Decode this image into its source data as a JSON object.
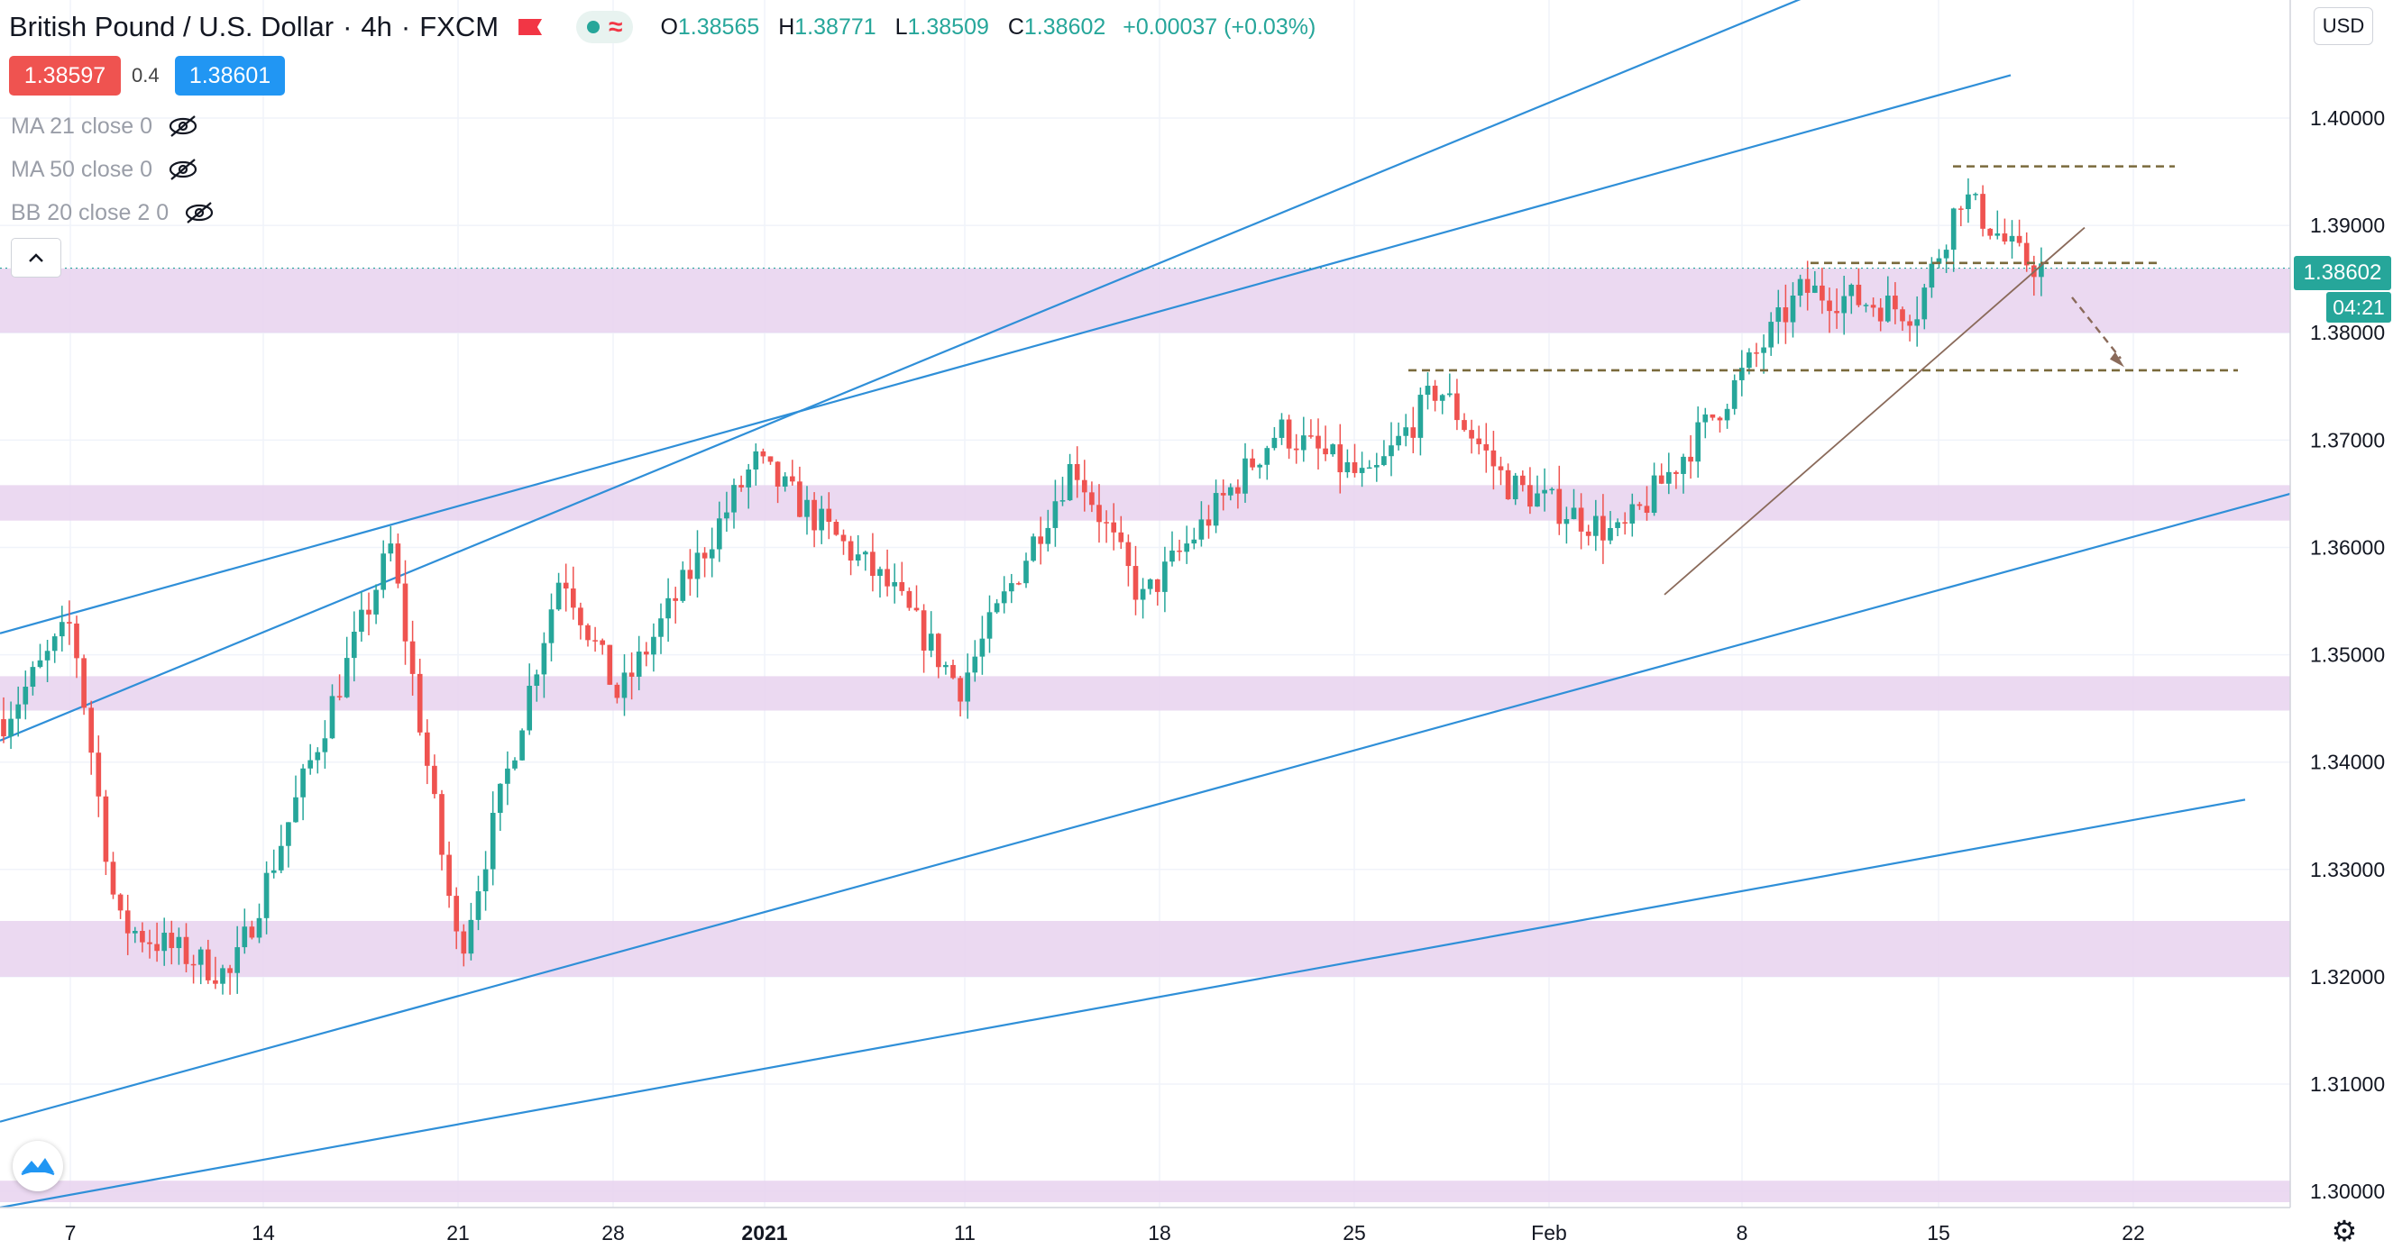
{
  "header": {
    "symbol": "British Pound / U.S. Dollar",
    "interval": "4h",
    "broker": "FXCM",
    "ohlc": {
      "o_label": "O",
      "o": "1.38565",
      "h_label": "H",
      "h": "1.38771",
      "l_label": "L",
      "l": "1.38509",
      "c_label": "C",
      "c": "1.38602",
      "change": "+0.00037 (+0.03%)"
    }
  },
  "trade": {
    "sell": "1.38597",
    "spread": "0.4",
    "buy": "1.38601"
  },
  "indicators": [
    {
      "label": "MA 21 close 0",
      "icon": "eye-off-icon"
    },
    {
      "label": "MA 50 close 0",
      "icon": "eye-off-icon"
    },
    {
      "label": "BB 20 close 2 0",
      "icon": "eye-off-icon"
    }
  ],
  "currency_button": "USD",
  "last_price_label": "1.38602",
  "countdown_label": "04:21",
  "colors": {
    "up": "#26a69a",
    "down": "#ef5350",
    "channel": "#2f8fd8",
    "zone": "#e7d2ee",
    "level": "#7a6a3c",
    "trend": "#8a6a5a",
    "sell": "#ef5350",
    "buy": "#2196f3"
  },
  "chart_data": {
    "type": "candlestick",
    "y_axis": {
      "ticks": [
        "1.40000",
        "1.39000",
        "1.38000",
        "1.37000",
        "1.36000",
        "1.35000",
        "1.34000",
        "1.33000",
        "1.32000",
        "1.31000",
        "1.30000"
      ],
      "ylim": [
        1.2985,
        1.411
      ]
    },
    "x_axis": {
      "ticks": [
        "7",
        "14",
        "21",
        "28",
        "2021",
        "11",
        "18",
        "25",
        "Feb",
        "8",
        "15",
        "22"
      ]
    },
    "series_summary": {
      "start": 1.348,
      "low": 1.314,
      "high": 1.395,
      "last": 1.38602
    },
    "anchors": [
      {
        "t": 0.0,
        "price": 1.344
      },
      {
        "t": 0.03,
        "price": 1.353
      },
      {
        "t": 0.05,
        "price": 1.325
      },
      {
        "t": 0.1,
        "price": 1.32
      },
      {
        "t": 0.14,
        "price": 1.343
      },
      {
        "t": 0.17,
        "price": 1.36
      },
      {
        "t": 0.2,
        "price": 1.322
      },
      {
        "t": 0.245,
        "price": 1.358
      },
      {
        "t": 0.27,
        "price": 1.346
      },
      {
        "t": 0.33,
        "price": 1.368
      },
      {
        "t": 0.39,
        "price": 1.356
      },
      {
        "t": 0.42,
        "price": 1.347
      },
      {
        "t": 0.47,
        "price": 1.368
      },
      {
        "t": 0.5,
        "price": 1.355
      },
      {
        "t": 0.56,
        "price": 1.371
      },
      {
        "t": 0.6,
        "price": 1.366
      },
      {
        "t": 0.63,
        "price": 1.375
      },
      {
        "t": 0.66,
        "price": 1.366
      },
      {
        "t": 0.71,
        "price": 1.361
      },
      {
        "t": 0.75,
        "price": 1.372
      },
      {
        "t": 0.79,
        "price": 1.384
      },
      {
        "t": 0.84,
        "price": 1.382
      },
      {
        "t": 0.86,
        "price": 1.393
      },
      {
        "t": 0.885,
        "price": 1.387
      },
      {
        "t": 0.895,
        "price": 1.386
      }
    ],
    "support_resistance_zones": [
      {
        "from": 1.38,
        "to": 1.386
      },
      {
        "from": 1.3625,
        "to": 1.3658
      },
      {
        "from": 1.3448,
        "to": 1.348
      },
      {
        "from": 1.32,
        "to": 1.3252
      },
      {
        "from": 1.299,
        "to": 1.301
      }
    ],
    "horizontal_levels": [
      1.3955,
      1.3865,
      1.3765
    ]
  }
}
